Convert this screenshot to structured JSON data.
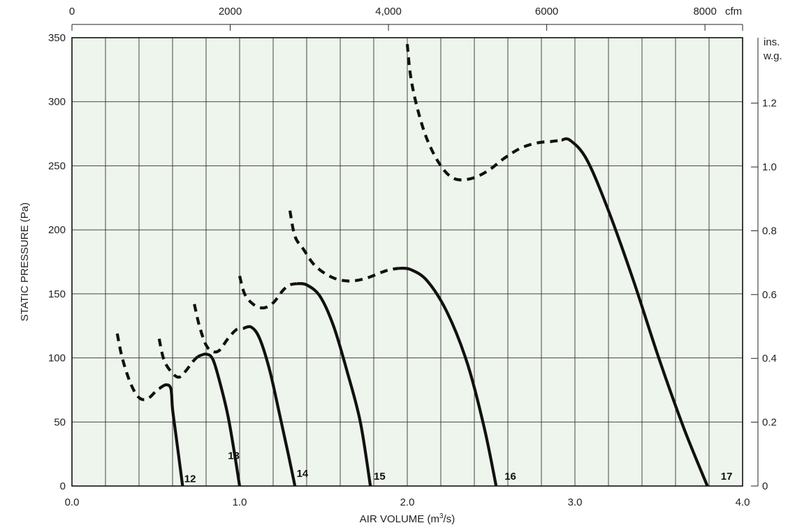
{
  "chart_data": {
    "type": "line",
    "title": "",
    "xlabel": "AIR VOLUME (m",
    "xlabel_sup": "3",
    "xlabel_tail": "/s)",
    "ylabel": "STATIC PRESSURE (Pa)",
    "xlim": [
      0,
      4
    ],
    "ylim": [
      0,
      350
    ],
    "x_ticks": [
      0,
      1,
      2,
      3,
      4
    ],
    "x_tick_labels": [
      "0.0",
      "1.0",
      "2.0",
      "3.0",
      "4.0"
    ],
    "y_ticks": [
      0,
      50,
      100,
      150,
      200,
      250,
      300,
      350
    ],
    "y_tick_labels": [
      "0",
      "50",
      "100",
      "150",
      "200",
      "250",
      "300",
      "350"
    ],
    "grid": true,
    "top_axis": {
      "unit": "cfm",
      "ticks": [
        0,
        2000,
        4000,
        6000,
        8000
      ],
      "tick_labels": [
        "0",
        "2000",
        "4,000",
        "6000",
        "8000"
      ]
    },
    "right_axis": {
      "unit_line1": "ins.",
      "unit_line2": "w.g.",
      "ticks": [
        0,
        0.2,
        0.4,
        0.6,
        0.8,
        1.0,
        1.2
      ],
      "tick_labels": [
        "0",
        "0.2",
        "0.4",
        "0.6",
        "0.8",
        "1.0",
        "1.2"
      ]
    },
    "series": [
      {
        "name": "12",
        "label_at": [
          0.67,
          3
        ],
        "dashed": [
          [
            0.27,
            119
          ],
          [
            0.3,
            100
          ],
          [
            0.35,
            80
          ],
          [
            0.4,
            69
          ],
          [
            0.45,
            68
          ],
          [
            0.5,
            74
          ],
          [
            0.52,
            76
          ]
        ],
        "solid": [
          [
            0.52,
            76
          ],
          [
            0.56,
            79
          ],
          [
            0.59,
            76
          ],
          [
            0.6,
            60
          ],
          [
            0.62,
            40
          ],
          [
            0.64,
            20
          ],
          [
            0.66,
            0
          ]
        ]
      },
      {
        "name": "13",
        "label_at": [
          0.93,
          21
        ],
        "dashed": [
          [
            0.52,
            115
          ],
          [
            0.55,
            98
          ],
          [
            0.6,
            88
          ],
          [
            0.64,
            85
          ],
          [
            0.68,
            90
          ],
          [
            0.72,
            97
          ],
          [
            0.75,
            101
          ]
        ],
        "solid": [
          [
            0.75,
            101
          ],
          [
            0.8,
            103
          ],
          [
            0.84,
            99
          ],
          [
            0.88,
            82
          ],
          [
            0.93,
            55
          ],
          [
            0.97,
            25
          ],
          [
            1.0,
            0
          ]
        ]
      },
      {
        "name": "14",
        "label_at": [
          1.34,
          7
        ],
        "dashed": [
          [
            0.73,
            142
          ],
          [
            0.76,
            125
          ],
          [
            0.8,
            110
          ],
          [
            0.84,
            105
          ],
          [
            0.88,
            106
          ],
          [
            0.93,
            115
          ],
          [
            0.98,
            122
          ],
          [
            1.02,
            123
          ]
        ],
        "solid": [
          [
            1.02,
            123
          ],
          [
            1.07,
            124
          ],
          [
            1.12,
            115
          ],
          [
            1.18,
            90
          ],
          [
            1.24,
            55
          ],
          [
            1.29,
            25
          ],
          [
            1.33,
            0
          ]
        ]
      },
      {
        "name": "15",
        "label_at": [
          1.8,
          5
        ],
        "dashed": [
          [
            1.0,
            164
          ],
          [
            1.03,
            150
          ],
          [
            1.08,
            142
          ],
          [
            1.14,
            139
          ],
          [
            1.2,
            143
          ],
          [
            1.26,
            153
          ],
          [
            1.3,
            157
          ],
          [
            1.34,
            158
          ]
        ],
        "solid": [
          [
            1.34,
            158
          ],
          [
            1.4,
            157
          ],
          [
            1.48,
            148
          ],
          [
            1.56,
            125
          ],
          [
            1.64,
            90
          ],
          [
            1.72,
            50
          ],
          [
            1.78,
            0
          ]
        ]
      },
      {
        "name": "16",
        "label_at": [
          2.58,
          5
        ],
        "dashed": [
          [
            1.3,
            215
          ],
          [
            1.33,
            195
          ],
          [
            1.38,
            185
          ],
          [
            1.45,
            172
          ],
          [
            1.55,
            163
          ],
          [
            1.65,
            160
          ],
          [
            1.75,
            162
          ],
          [
            1.85,
            167
          ],
          [
            1.9,
            169
          ],
          [
            1.95,
            170
          ]
        ],
        "solid": [
          [
            1.95,
            170
          ],
          [
            2.02,
            169
          ],
          [
            2.12,
            160
          ],
          [
            2.24,
            135
          ],
          [
            2.36,
            95
          ],
          [
            2.46,
            45
          ],
          [
            2.53,
            0
          ]
        ]
      },
      {
        "name": "17",
        "label_at": [
          3.87,
          5
        ],
        "dashed": [
          [
            2.0,
            345
          ],
          [
            2.02,
            320
          ],
          [
            2.06,
            295
          ],
          [
            2.12,
            270
          ],
          [
            2.2,
            250
          ],
          [
            2.28,
            240
          ],
          [
            2.38,
            240
          ],
          [
            2.48,
            246
          ],
          [
            2.58,
            256
          ],
          [
            2.68,
            264
          ],
          [
            2.78,
            268
          ],
          [
            2.86,
            269
          ],
          [
            2.92,
            270
          ]
        ],
        "solid": [
          [
            2.92,
            270
          ],
          [
            2.97,
            270
          ],
          [
            3.07,
            255
          ],
          [
            3.2,
            215
          ],
          [
            3.35,
            160
          ],
          [
            3.5,
            100
          ],
          [
            3.65,
            45
          ],
          [
            3.79,
            0
          ]
        ]
      }
    ]
  }
}
